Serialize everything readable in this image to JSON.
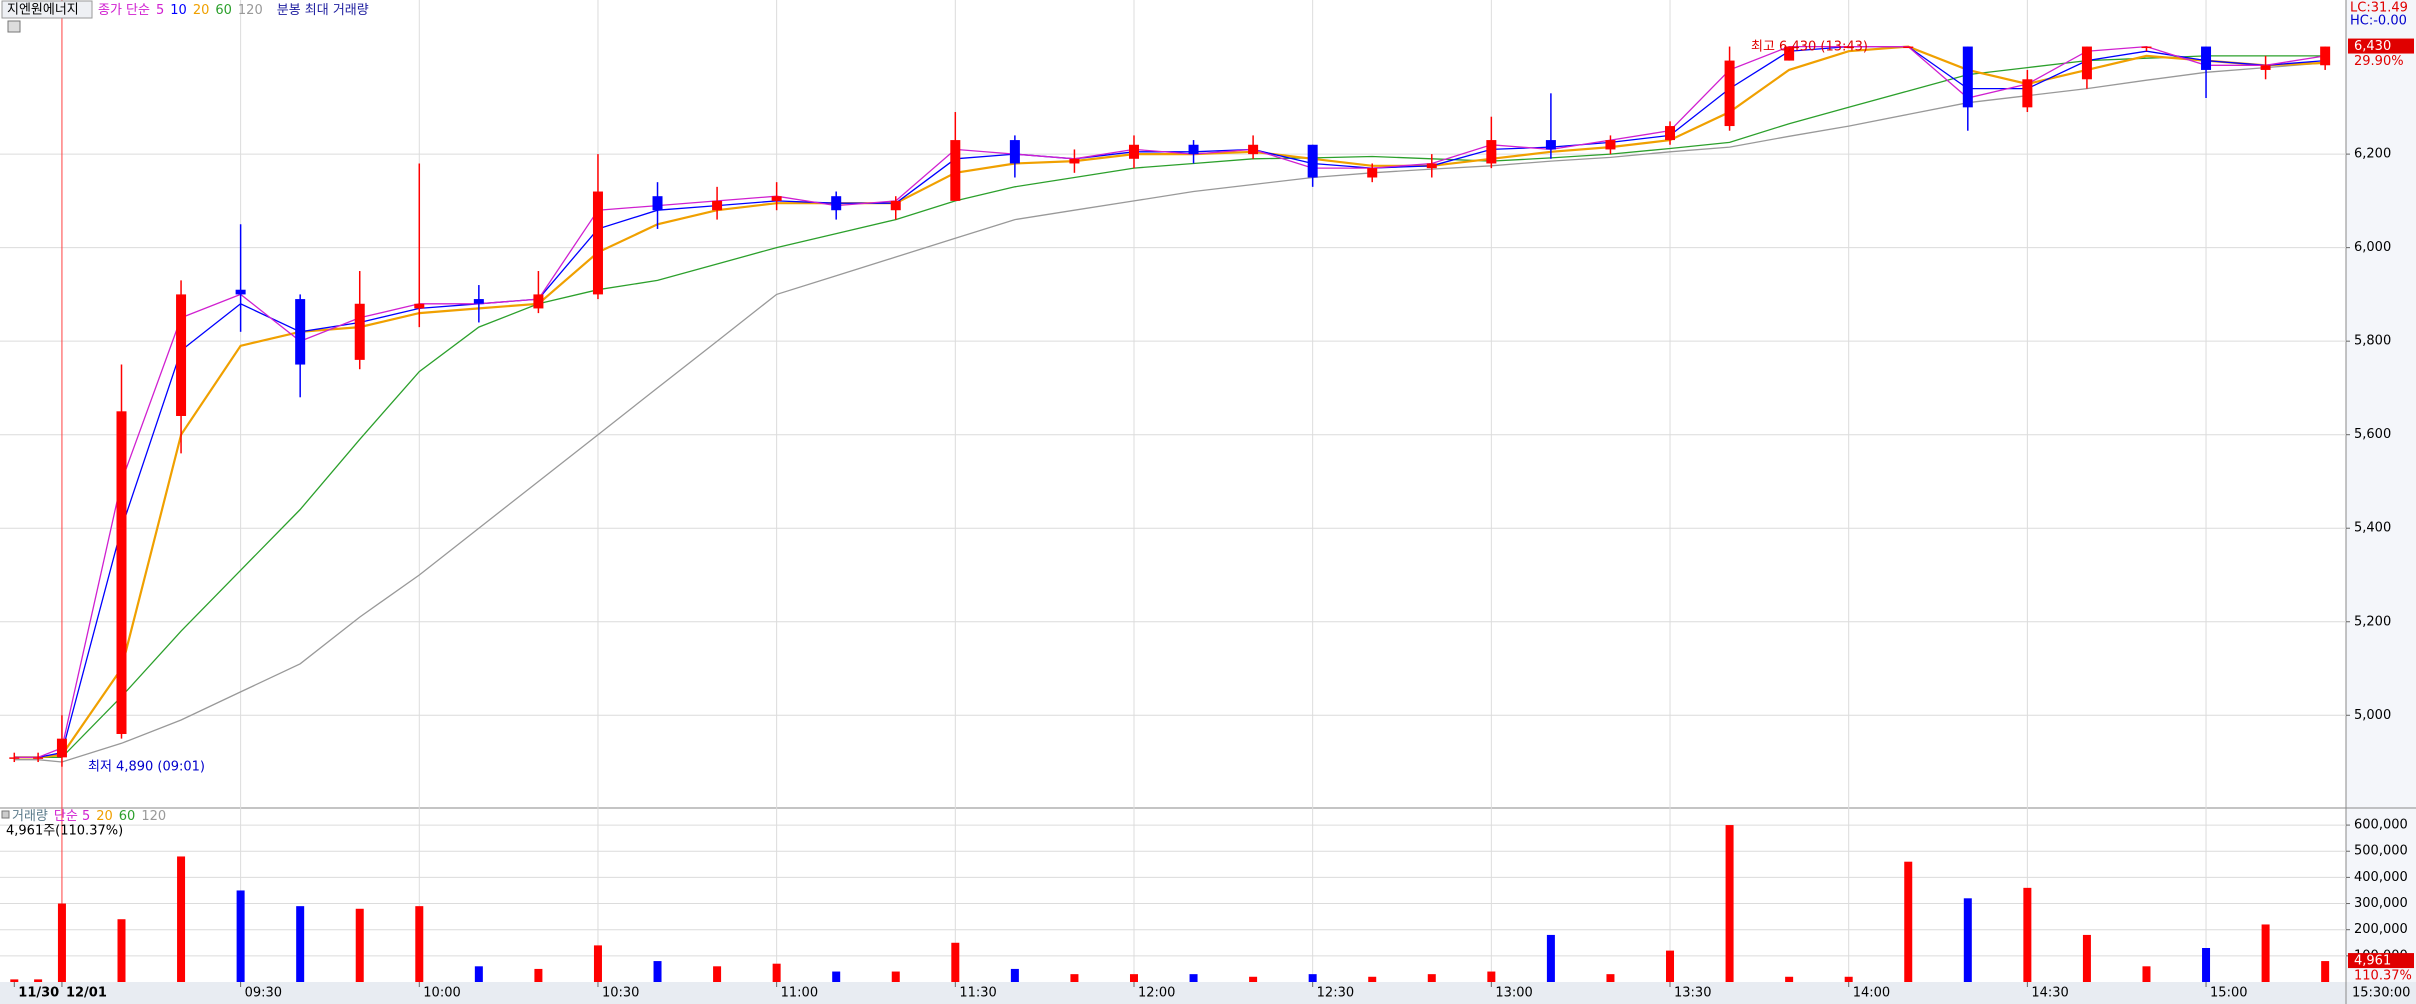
{
  "chart_data": [
    {
      "type": "candlestick",
      "title": "지엔원에너지",
      "legend_prefix": "종가 단순",
      "subtitle": "분봉 최대 거래량",
      "x": [
        -8,
        -4,
        0,
        10,
        20,
        30,
        40,
        50,
        60,
        70,
        80,
        90,
        100,
        110,
        120,
        130,
        140,
        150,
        160,
        170,
        180,
        190,
        200,
        210,
        220,
        230,
        240,
        250,
        260,
        270,
        280,
        290,
        300,
        310,
        320,
        330,
        340,
        350,
        360,
        370,
        380
      ],
      "xlim": [
        -10.4,
        383.5
      ],
      "xticks": [
        {
          "value": -8,
          "label": "11/30"
        },
        {
          "value": 0,
          "label": "12/01"
        },
        {
          "value": 30,
          "label": "09:30"
        },
        {
          "value": 60,
          "label": "10:00"
        },
        {
          "value": 90,
          "label": "10:30"
        },
        {
          "value": 120,
          "label": "11:00"
        },
        {
          "value": 150,
          "label": "11:30"
        },
        {
          "value": 180,
          "label": "12:00"
        },
        {
          "value": 210,
          "label": "12:30"
        },
        {
          "value": 240,
          "label": "13:00"
        },
        {
          "value": 270,
          "label": "13:30"
        },
        {
          "value": 300,
          "label": "14:00"
        },
        {
          "value": 330,
          "label": "14:30"
        },
        {
          "value": 360,
          "label": "15:00"
        }
      ],
      "end_time_label": "15:30:00",
      "open": [
        4910,
        4910,
        4910,
        4960,
        5640,
        5910,
        5890,
        5760,
        5870,
        5890,
        5870,
        5900,
        6110,
        6080,
        6100,
        6110,
        6080,
        6100,
        6230,
        6180,
        6190,
        6220,
        6200,
        6220,
        6150,
        6170,
        6180,
        6230,
        6210,
        6230,
        6260,
        6400,
        6430,
        6430,
        6430,
        6300,
        6360,
        6430,
        6430,
        6380,
        6390
      ],
      "high": [
        4920,
        4920,
        5000,
        5750,
        5930,
        6050,
        5900,
        5950,
        6180,
        5920,
        5950,
        6200,
        6140,
        6130,
        6140,
        6120,
        6110,
        6290,
        6240,
        6210,
        6240,
        6230,
        6240,
        6220,
        6180,
        6200,
        6280,
        6330,
        6240,
        6270,
        6430,
        6430,
        6430,
        6430,
        6430,
        6380,
        6430,
        6430,
        6430,
        6410,
        6430
      ],
      "low": [
        4900,
        4900,
        4890,
        4950,
        5560,
        5820,
        5680,
        5740,
        5830,
        5840,
        5860,
        5890,
        6040,
        6060,
        6080,
        6060,
        6060,
        6100,
        6150,
        6160,
        6170,
        6180,
        6190,
        6130,
        6140,
        6150,
        6170,
        6190,
        6200,
        6220,
        6250,
        6400,
        6430,
        6430,
        6250,
        6290,
        6340,
        6420,
        6320,
        6360,
        6380
      ],
      "close": [
        4910,
        4910,
        4950,
        5650,
        5900,
        5900,
        5750,
        5880,
        5880,
        5880,
        5900,
        6120,
        6080,
        6100,
        6110,
        6080,
        6100,
        6230,
        6180,
        6190,
        6220,
        6200,
        6220,
        6150,
        6170,
        6180,
        6230,
        6210,
        6230,
        6260,
        6400,
        6430,
        6430,
        6430,
        6300,
        6360,
        6430,
        6430,
        6380,
        6390,
        6430
      ],
      "up_color": "#ff0000",
      "down_color": "#0000ff",
      "series": [
        {
          "name": "5",
          "color": "#d020d0",
          "values": [
            4910,
            4910,
            4930,
            5500,
            5850,
            5900,
            5800,
            5850,
            5880,
            5880,
            5890,
            6080,
            6090,
            6100,
            6110,
            6090,
            6100,
            6210,
            6200,
            6190,
            6210,
            6200,
            6210,
            6170,
            6170,
            6180,
            6220,
            6210,
            6230,
            6250,
            6380,
            6430,
            6430,
            6430,
            6320,
            6350,
            6420,
            6430,
            6390,
            6390,
            6410
          ]
        },
        {
          "name": "10",
          "color": "#0000ff",
          "values": [
            4910,
            4910,
            4920,
            5400,
            5780,
            5880,
            5820,
            5840,
            5870,
            5880,
            5890,
            6040,
            6080,
            6090,
            6100,
            6095,
            6095,
            6190,
            6200,
            6190,
            6205,
            6205,
            6210,
            6180,
            6170,
            6175,
            6210,
            6215,
            6225,
            6240,
            6340,
            6420,
            6430,
            6430,
            6340,
            6340,
            6400,
            6420,
            6400,
            6390,
            6400
          ]
        },
        {
          "name": "20",
          "color": "#f0a000",
          "values": [
            4910,
            4910,
            4915,
            5100,
            5600,
            5790,
            5820,
            5830,
            5860,
            5870,
            5880,
            5990,
            6050,
            6080,
            6095,
            6095,
            6095,
            6160,
            6180,
            6185,
            6200,
            6200,
            6205,
            6190,
            6175,
            6175,
            6190,
            6205,
            6215,
            6230,
            6290,
            6380,
            6420,
            6430,
            6380,
            6350,
            6380,
            6410,
            6400,
            6390,
            6395
          ]
        },
        {
          "name": "60",
          "color": "#2ca02c",
          "values": [
            4910,
            4910,
            4910,
            5040,
            5180,
            5310,
            5440,
            5590,
            5735,
            5830,
            5880,
            5910,
            5930,
            5965,
            6000,
            6030,
            6060,
            6100,
            6130,
            6150,
            6170,
            6180,
            6190,
            6192,
            6195,
            6190,
            6185,
            6192,
            6200,
            6212,
            6225,
            6265,
            6300,
            6335,
            6370,
            6385,
            6400,
            6405,
            6410,
            6410,
            6410
          ]
        },
        {
          "name": "120",
          "color": "#999999",
          "values": [
            4905,
            4905,
            4900,
            4940,
            4990,
            5050,
            5110,
            5210,
            5300,
            5400,
            5500,
            5600,
            5700,
            5800,
            5900,
            5940,
            5980,
            6020,
            6060,
            6080,
            6100,
            6120,
            6135,
            6150,
            6160,
            6168,
            6175,
            6185,
            6193,
            6205,
            6215,
            6238,
            6260,
            6285,
            6310,
            6325,
            6340,
            6358,
            6375,
            6385,
            6395
          ]
        }
      ],
      "ylim": [
        4806,
        6521
      ],
      "yticks": [
        {
          "value": 5000,
          "label": "5,000"
        },
        {
          "value": 5200,
          "label": "5,200"
        },
        {
          "value": 5400,
          "label": "5,400"
        },
        {
          "value": 5600,
          "label": "5,600"
        },
        {
          "value": 5800,
          "label": "5,800"
        },
        {
          "value": 6000,
          "label": "6,000"
        },
        {
          "value": 6200,
          "label": "6,200"
        }
      ],
      "grid": true,
      "high_annotation": "최고 6,430 (13:43)",
      "low_annotation": "최저 4,890 (09:01)",
      "lc_label": "LC:31.49",
      "hc_label": "HC:-0.00",
      "last_label": "6,430",
      "last_change_label": "29.90%"
    },
    {
      "type": "bar",
      "legend_prefix": "거래량",
      "legend": [
        {
          "name": "단순 5",
          "color": "#d020d0"
        },
        {
          "name": "20",
          "color": "#f0a000"
        },
        {
          "name": "60",
          "color": "#2ca02c"
        },
        {
          "name": "120",
          "color": "#999999"
        }
      ],
      "values": [
        10000,
        10000,
        300000,
        240000,
        480000,
        350000,
        290000,
        280000,
        290000,
        60000,
        50000,
        140000,
        80000,
        60000,
        70000,
        40000,
        40000,
        150000,
        50000,
        30000,
        30000,
        30000,
        20000,
        30000,
        20000,
        30000,
        40000,
        180000,
        30000,
        120000,
        600000,
        20000,
        20000,
        460000,
        320000,
        360000,
        180000,
        60000,
        130000,
        220000,
        80000
      ],
      "ylim": [
        0,
        650000
      ],
      "yticks": [
        {
          "value": 100000,
          "label": "100,000"
        },
        {
          "value": 200000,
          "label": "200,000"
        },
        {
          "value": 300000,
          "label": "300,000"
        },
        {
          "value": 400000,
          "label": "400,000"
        },
        {
          "value": 500000,
          "label": "500,000"
        },
        {
          "value": 600000,
          "label": "600,000"
        }
      ],
      "summary": "4,961주(110.37%)",
      "last_label": "4,961",
      "last_change_label": "110.37%"
    }
  ]
}
